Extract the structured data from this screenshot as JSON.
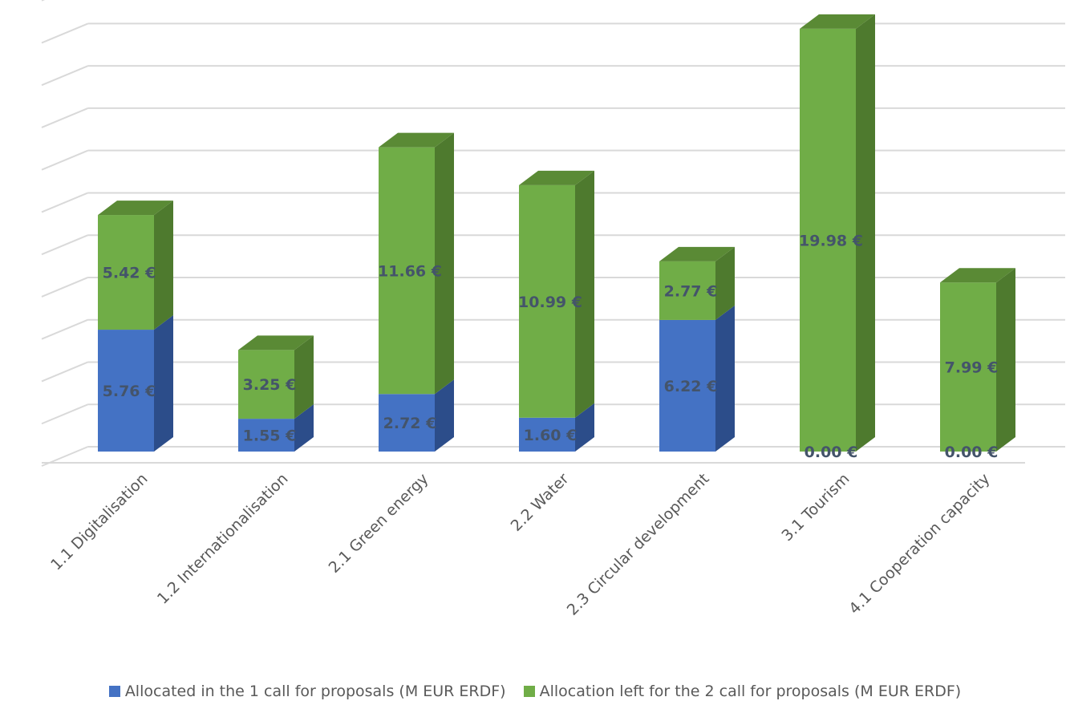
{
  "colors": {
    "allocated_front": "#4472C4",
    "allocated_side": "#2C4D8A",
    "allocated_top": "#3A60A8",
    "left_front": "#70AD47",
    "left_side": "#4E7A2E",
    "left_top": "#5A8A35",
    "grid": "#D9D9D9",
    "label": "#44546A"
  },
  "chart_data": {
    "type": "bar",
    "stacked": true,
    "three_d": true,
    "categories": [
      "1.1 Digitalisation",
      "1.2  Internationalisation",
      "2.1 Green energy",
      "2.2 Water",
      "2.3 Circular development",
      "3.1 Tourism",
      "4.1 Cooperation capacity"
    ],
    "series": [
      {
        "name": "Allocated in the 1 call for proposals (M EUR ERDF)",
        "values": [
          5.76,
          1.55,
          2.72,
          1.6,
          6.22,
          0.0,
          0.0
        ],
        "labels": [
          "5.76 €",
          "1.55 €",
          "2.72 €",
          "1.60 €",
          "6.22 €",
          "0.00 €",
          "0.00 €"
        ]
      },
      {
        "name": "Allocation left for the 2 call for proposals (M EUR ERDF)",
        "values": [
          5.42,
          3.25,
          11.66,
          10.99,
          2.77,
          19.98,
          7.99
        ],
        "labels": [
          "5.42 €",
          "3.25 €",
          "11.66 €",
          "10.99 €",
          "2.77 €",
          "19.98 €",
          "7.99 €"
        ]
      }
    ],
    "ylim": [
      0,
      22
    ],
    "grid": true,
    "legend_position": "bottom",
    "y_tick_labels_shown": false
  }
}
